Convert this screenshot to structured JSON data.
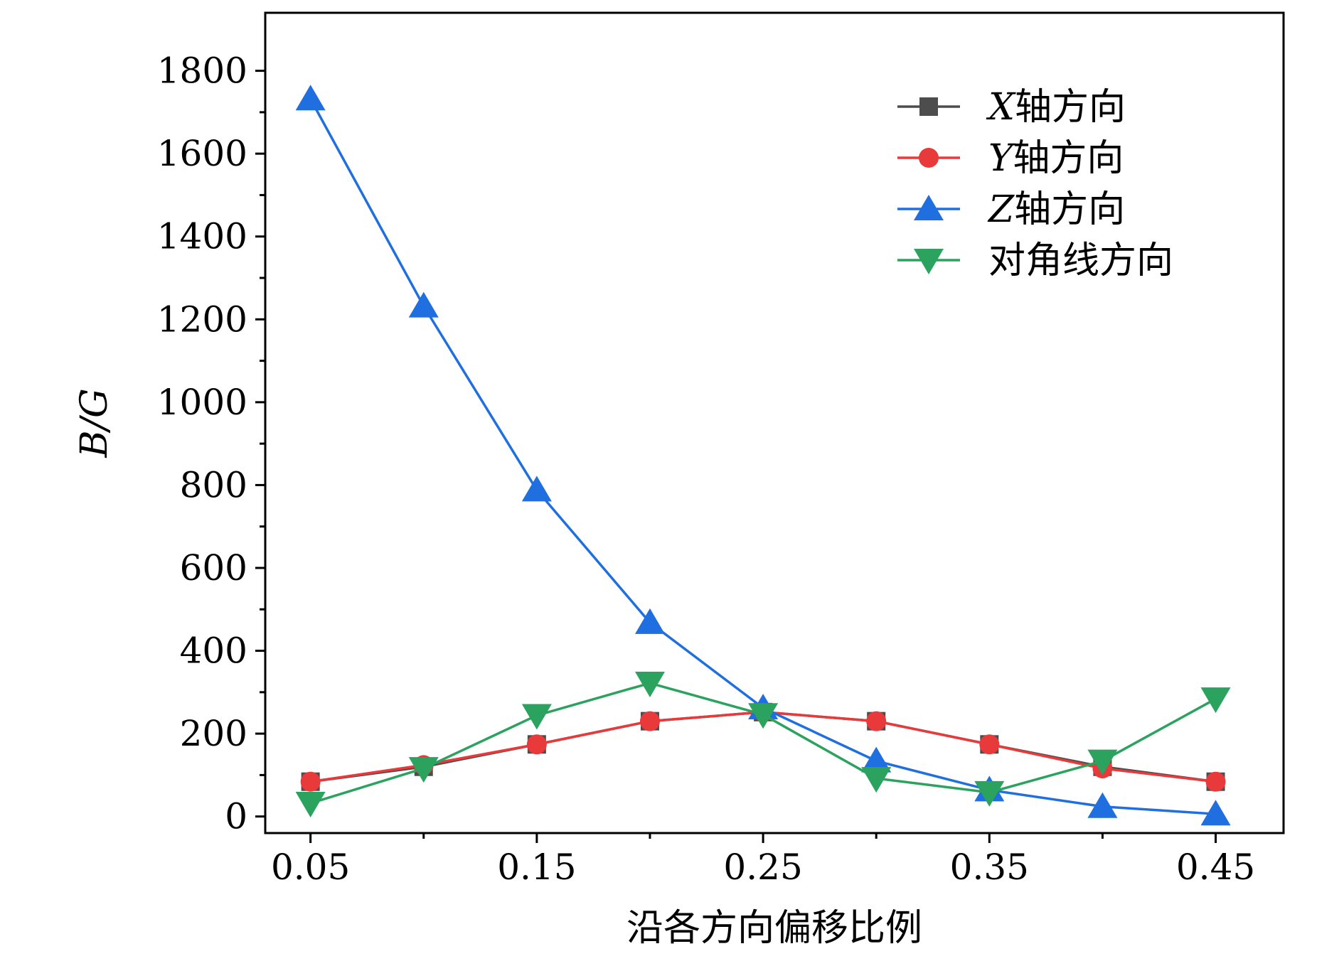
{
  "chart_data": {
    "type": "line",
    "title": "",
    "xlabel": "沿各方向偏移比例",
    "ylabel": "B/G",
    "xlim": [
      0.03,
      0.48
    ],
    "ylim": [
      -40,
      1940
    ],
    "x": [
      0.05,
      0.1,
      0.15,
      0.2,
      0.25,
      0.3,
      0.35,
      0.4,
      0.45
    ],
    "x_ticks": [
      0.05,
      0.15,
      0.25,
      0.35,
      0.45
    ],
    "x_tick_labels": [
      "0.05",
      "0.15",
      "0.25",
      "0.35",
      "0.45"
    ],
    "y_ticks": [
      0,
      200,
      400,
      600,
      800,
      1000,
      1200,
      1400,
      1600,
      1800
    ],
    "y_tick_labels": [
      "0",
      "200",
      "400",
      "600",
      "800",
      "1000",
      "1200",
      "1400",
      "1600",
      "1800"
    ],
    "legend_position": "top-right",
    "grid": false,
    "series": [
      {
        "name": "X轴方向",
        "legend_var": "X",
        "legend_suffix": "轴方向",
        "marker": "square",
        "color": "#4d4d4d",
        "values": [
          84,
          120,
          174,
          230,
          252,
          230,
          174,
          120,
          84
        ]
      },
      {
        "name": "Y轴方向",
        "legend_var": "Y",
        "legend_suffix": "轴方向",
        "marker": "circle",
        "color": "#e8393b",
        "values": [
          84,
          124,
          174,
          230,
          252,
          230,
          174,
          116,
          84
        ]
      },
      {
        "name": "Z轴方向",
        "legend_var": "Z",
        "legend_suffix": "轴方向",
        "marker": "triangle-up",
        "color": "#1f6fe0",
        "values": [
          1732,
          1232,
          788,
          468,
          262,
          134,
          64,
          24,
          6
        ]
      },
      {
        "name": "对角线方向",
        "legend_var": "",
        "legend_suffix": "对角线方向",
        "marker": "triangle-down",
        "color": "#2ca25f",
        "values": [
          32,
          116,
          244,
          322,
          246,
          92,
          58,
          134,
          284
        ]
      }
    ]
  }
}
